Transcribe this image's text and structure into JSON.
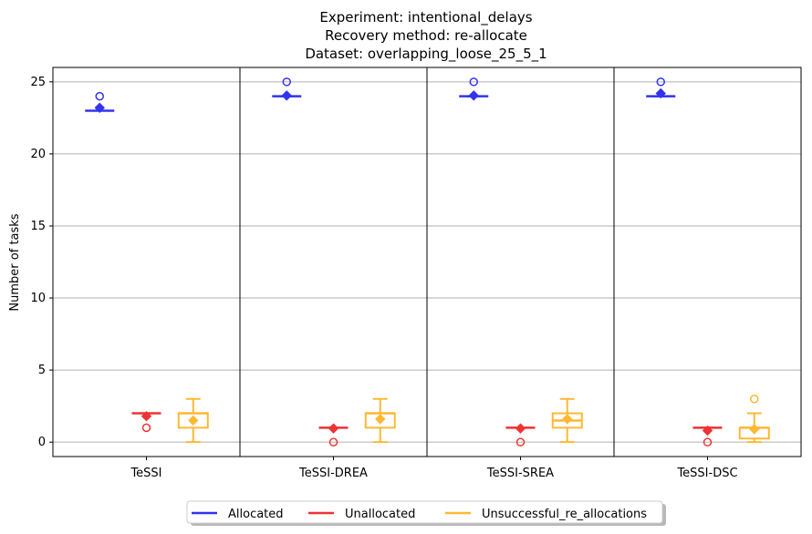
{
  "chart_data": {
    "type": "box",
    "title_lines": [
      "Experiment: intentional_delays",
      "Recovery method: re-allocate",
      "Dataset: overlapping_loose_25_5_1"
    ],
    "xlabel": "",
    "ylabel": "Number of tasks",
    "ylim": [
      -1,
      26
    ],
    "yticks": [
      0,
      5,
      10,
      15,
      20,
      25
    ],
    "grid": "horizontal",
    "legend_position": "bottom-center",
    "categories": [
      "TeSSI",
      "TeSSI-DREA",
      "TeSSI-SREA",
      "TeSSI-DSC"
    ],
    "series": [
      {
        "name": "Allocated",
        "color": "#3333ee",
        "boxes": [
          {
            "whislo": 23,
            "q1": 23,
            "med": 23,
            "q3": 23,
            "whishi": 23,
            "mean": 23.2,
            "fliers": [
              24
            ]
          },
          {
            "whislo": 24,
            "q1": 24,
            "med": 24,
            "q3": 24,
            "whishi": 24,
            "mean": 24.05,
            "fliers": [
              25
            ]
          },
          {
            "whislo": 24,
            "q1": 24,
            "med": 24,
            "q3": 24,
            "whishi": 24,
            "mean": 24.05,
            "fliers": [
              25
            ]
          },
          {
            "whislo": 24,
            "q1": 24,
            "med": 24,
            "q3": 24,
            "whishi": 24,
            "mean": 24.2,
            "fliers": [
              25
            ]
          }
        ]
      },
      {
        "name": "Unallocated",
        "color": "#ee3333",
        "boxes": [
          {
            "whislo": 2,
            "q1": 2,
            "med": 2,
            "q3": 2,
            "whishi": 2,
            "mean": 1.8,
            "fliers": [
              1
            ]
          },
          {
            "whislo": 1,
            "q1": 1,
            "med": 1,
            "q3": 1,
            "whishi": 1,
            "mean": 0.95,
            "fliers": [
              0
            ]
          },
          {
            "whislo": 1,
            "q1": 1,
            "med": 1,
            "q3": 1,
            "whishi": 1,
            "mean": 0.95,
            "fliers": [
              0
            ]
          },
          {
            "whislo": 1,
            "q1": 1,
            "med": 1,
            "q3": 1,
            "whishi": 1,
            "mean": 0.8,
            "fliers": [
              0
            ]
          }
        ]
      },
      {
        "name": "Unsuccessful_re_allocations",
        "color": "#ffb833",
        "boxes": [
          {
            "whislo": 0,
            "q1": 1,
            "med": 2,
            "q3": 2,
            "whishi": 3,
            "mean": 1.5,
            "fliers": []
          },
          {
            "whislo": 0,
            "q1": 1,
            "med": 2,
            "q3": 2,
            "whishi": 3,
            "mean": 1.6,
            "fliers": []
          },
          {
            "whislo": 0,
            "q1": 1,
            "med": 1.5,
            "q3": 2,
            "whishi": 3,
            "mean": 1.6,
            "fliers": []
          },
          {
            "whislo": 0,
            "q1": 0.25,
            "med": 1,
            "q3": 1,
            "whishi": 2,
            "mean": 0.9,
            "fliers": [
              3
            ]
          }
        ]
      }
    ]
  }
}
